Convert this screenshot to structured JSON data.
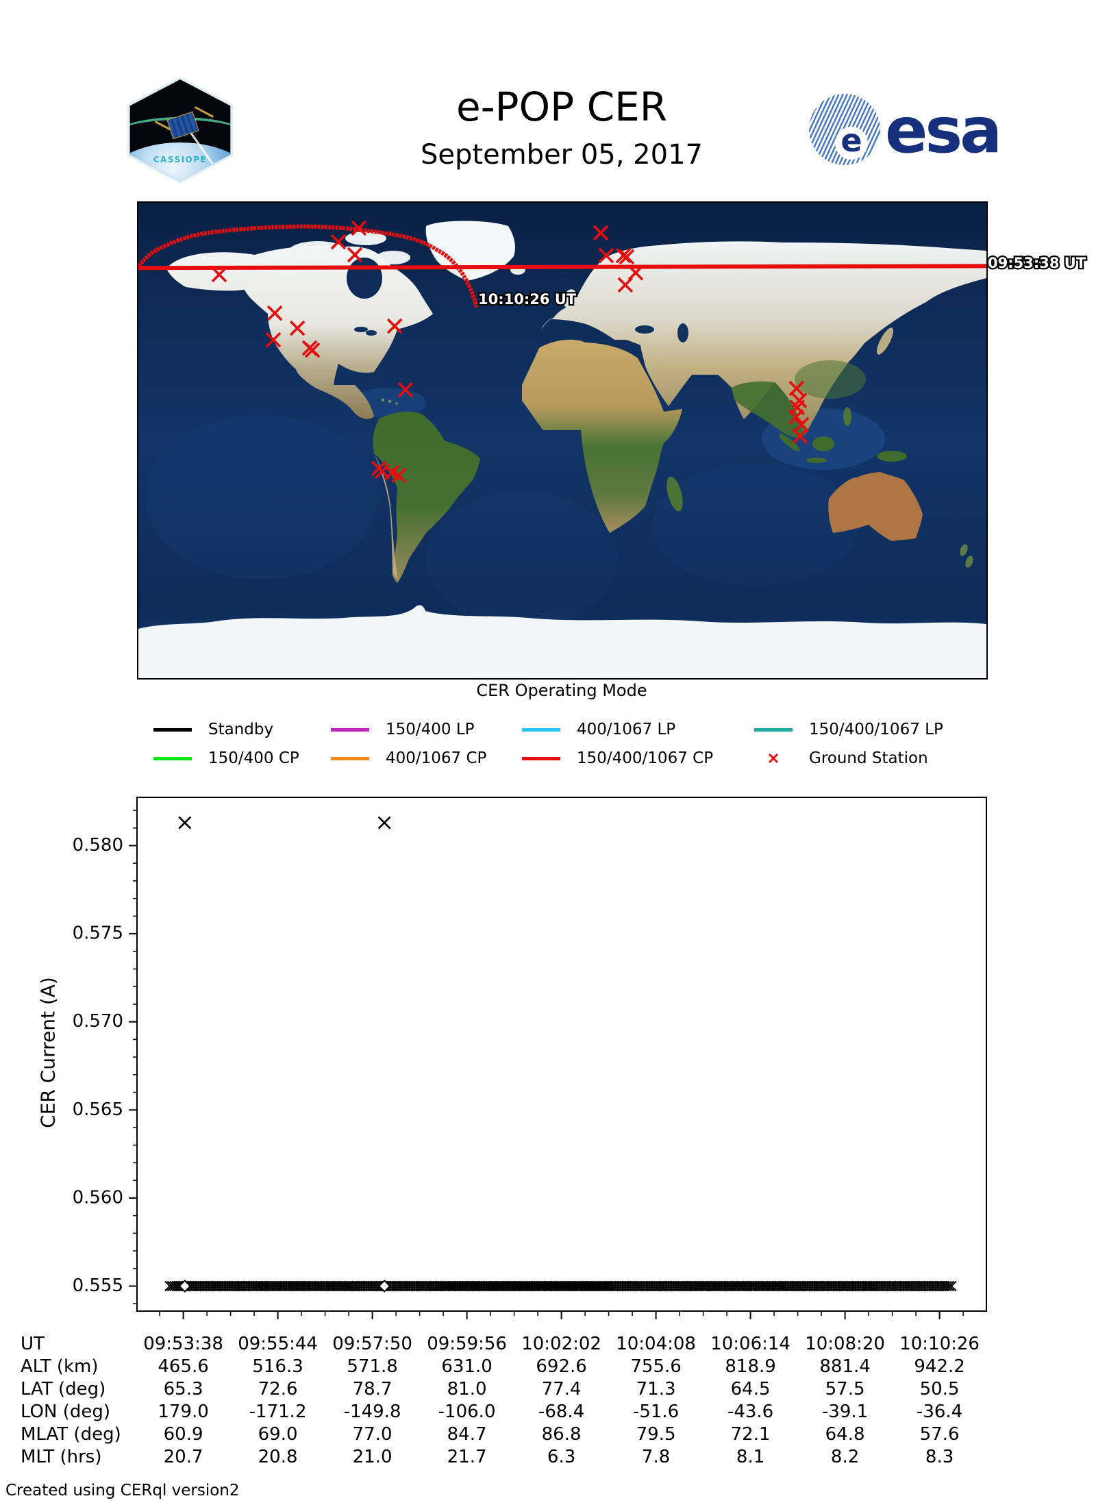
{
  "header": {
    "title": "e-POP CER",
    "date": "September 05, 2017",
    "cassiope_label": "CASSIOPE",
    "esa_wordmark": "esa",
    "esa_globe_letter": "e"
  },
  "map": {
    "start_time_label": "09:53:38 UT",
    "end_time_label": "10:10:26 UT",
    "track_color": "#e50d0d",
    "station_color": "#e50d0d",
    "track_points_lonlat": [
      [
        179.0,
        65.3
      ],
      [
        -171.2,
        72.6
      ],
      [
        -149.8,
        78.7
      ],
      [
        -106.0,
        81.0
      ],
      [
        -68.4,
        77.4
      ],
      [
        -51.6,
        71.3
      ],
      [
        -43.6,
        64.5
      ],
      [
        -39.1,
        57.5
      ],
      [
        -36.4,
        50.5
      ]
    ],
    "ground_stations_lonlat": [
      [
        -145.7,
        62.8
      ],
      [
        -86.4,
        80.4
      ],
      [
        -95.1,
        75.2
      ],
      [
        -88.1,
        70.3
      ],
      [
        -122.1,
        48.2
      ],
      [
        -112.5,
        42.5
      ],
      [
        -122.7,
        38.1
      ],
      [
        -107.3,
        35.0
      ],
      [
        -106.1,
        34.2
      ],
      [
        -71.2,
        43.3
      ],
      [
        -66.6,
        19.2
      ],
      [
        -77.9,
        -10.6
      ],
      [
        -76.5,
        -11.7
      ],
      [
        -72.4,
        -12.2
      ],
      [
        -69.5,
        -13.2
      ],
      [
        16.3,
        78.6
      ],
      [
        18.6,
        70.0
      ],
      [
        25.9,
        70.0
      ],
      [
        27.3,
        69.5
      ],
      [
        31.1,
        63.5
      ],
      [
        26.7,
        58.9
      ],
      [
        99.4,
        19.7
      ],
      [
        100.6,
        15.1
      ],
      [
        99.7,
        12.5
      ],
      [
        99.2,
        8.9
      ],
      [
        101.5,
        6.0
      ],
      [
        100.9,
        1.6
      ]
    ]
  },
  "legend": {
    "title": "CER Operating Mode",
    "entries": [
      {
        "label": "Standby",
        "color": "#000000",
        "marker": "line"
      },
      {
        "label": "150/400 LP",
        "color": "#bb29bb",
        "marker": "line"
      },
      {
        "label": "400/1067 LP",
        "color": "#2dc3f2",
        "marker": "line"
      },
      {
        "label": "150/400/1067 LP",
        "color": "#25a8a2",
        "marker": "line"
      },
      {
        "label": "150/400 CP",
        "color": "#0ce515",
        "marker": "line"
      },
      {
        "label": "400/1067 CP",
        "color": "#f5881f",
        "marker": "line"
      },
      {
        "label": "150/400/1067 CP",
        "color": "#e50d0d",
        "marker": "line"
      },
      {
        "label": "Ground Station",
        "color": "#e50d0d",
        "marker": "x"
      }
    ]
  },
  "chart_data": {
    "type": "scatter",
    "ylabel": "CER Current (A)",
    "marker": "x",
    "marker_color": "#000000",
    "ylim": [
      0.5536,
      0.5828
    ],
    "yticks": [
      0.555,
      0.56,
      0.565,
      0.57,
      0.575,
      0.58
    ],
    "x_ticks_ut": [
      "09:53:38",
      "09:55:44",
      "09:57:50",
      "09:59:56",
      "10:02:02",
      "10:04:08",
      "10:06:14",
      "10:08:20",
      "10:10:26"
    ],
    "baseline": {
      "value": 0.555,
      "start_ut": "09:53:20",
      "end_ut": "10:10:44"
    },
    "spikes": [
      {
        "ut": "09:53:40",
        "value": 0.5813
      },
      {
        "ut": "09:58:06",
        "value": 0.5813
      }
    ],
    "gap_markers": [
      {
        "ut": "09:53:40",
        "value": 0.555
      },
      {
        "ut": "09:58:06",
        "value": 0.555
      }
    ]
  },
  "table": {
    "rows": [
      {
        "label": "UT",
        "values": [
          "09:53:38",
          "09:55:44",
          "09:57:50",
          "09:59:56",
          "10:02:02",
          "10:04:08",
          "10:06:14",
          "10:08:20",
          "10:10:26"
        ]
      },
      {
        "label": "ALT (km)",
        "values": [
          "465.6",
          "516.3",
          "571.8",
          "631.0",
          "692.6",
          "755.6",
          "818.9",
          "881.4",
          "942.2"
        ]
      },
      {
        "label": "LAT (deg)",
        "values": [
          "65.3",
          "72.6",
          "78.7",
          "81.0",
          "77.4",
          "71.3",
          "64.5",
          "57.5",
          "50.5"
        ]
      },
      {
        "label": "LON (deg)",
        "values": [
          "179.0",
          "-171.2",
          "-149.8",
          "-106.0",
          "-68.4",
          "-51.6",
          "-43.6",
          "-39.1",
          "-36.4"
        ]
      },
      {
        "label": "MLAT (deg)",
        "values": [
          "60.9",
          "69.0",
          "77.0",
          "84.7",
          "86.8",
          "79.5",
          "72.1",
          "64.8",
          "57.6"
        ]
      },
      {
        "label": "MLT (hrs)",
        "values": [
          "20.7",
          "20.8",
          "21.0",
          "21.7",
          "6.3",
          "7.8",
          "8.1",
          "8.2",
          "8.3"
        ]
      }
    ]
  },
  "footer": {
    "credit": "Created using CERql version2"
  }
}
